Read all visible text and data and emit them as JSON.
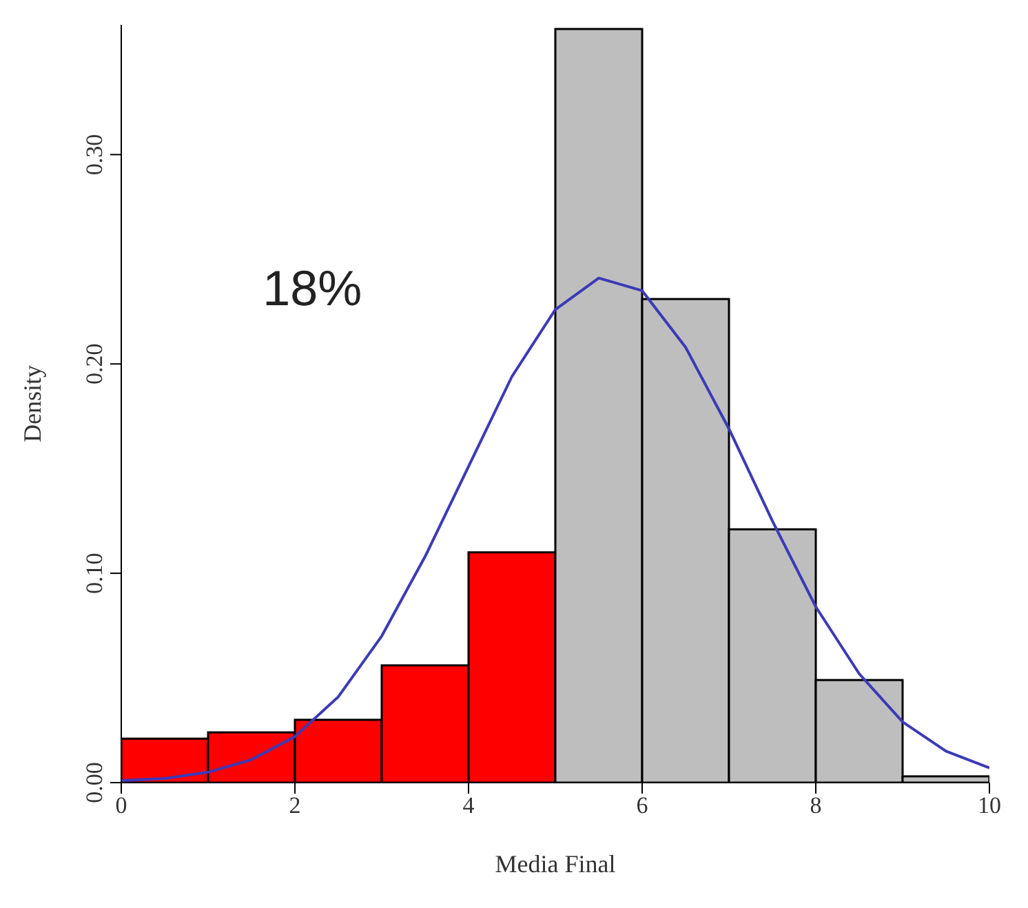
{
  "chart_data": {
    "type": "histogram",
    "xlabel": "Media Final",
    "ylabel": "Density",
    "annotations": [
      "18%"
    ],
    "bins": [
      0,
      1,
      2,
      3,
      4,
      5,
      6,
      7,
      8,
      9,
      10
    ],
    "xlim": [
      0,
      10
    ],
    "xticks": [
      0,
      2,
      4,
      6,
      8,
      10
    ],
    "ylim": [
      0,
      0.362
    ],
    "yticks": [
      {
        "value": 0,
        "label": "0.00"
      },
      {
        "value": 0.1,
        "label": "0.10"
      },
      {
        "value": 0.2,
        "label": "0.20"
      },
      {
        "value": 0.3,
        "label": "0.30"
      }
    ],
    "series": [
      {
        "values": [
          0.021,
          0.024,
          0.03,
          0.056,
          0.11,
          0.36,
          0.231,
          0.121,
          0.049,
          0.003
        ],
        "colors": [
          "#ff0000",
          "#ff0000",
          "#ff0000",
          "#ff0000",
          "#ff0000",
          "#bebebe",
          "#bebebe",
          "#bebebe",
          "#bebebe",
          "#bebebe"
        ]
      },
      {
        "type": "line",
        "color": "#3a3ab8",
        "line_style": "solid",
        "marker": "none",
        "x": [
          0,
          0.5,
          1,
          1.5,
          2,
          2.5,
          3,
          3.5,
          4,
          4.5,
          5,
          5.5,
          6,
          6.5,
          7,
          7.5,
          8,
          8.5,
          9,
          9.5,
          10
        ],
        "values": [
          0.001,
          0.002,
          0.005,
          0.011,
          0.022,
          0.041,
          0.07,
          0.108,
          0.151,
          0.194,
          0.226,
          0.241,
          0.235,
          0.208,
          0.169,
          0.125,
          0.084,
          0.052,
          0.029,
          0.015,
          0.007
        ]
      }
    ]
  }
}
